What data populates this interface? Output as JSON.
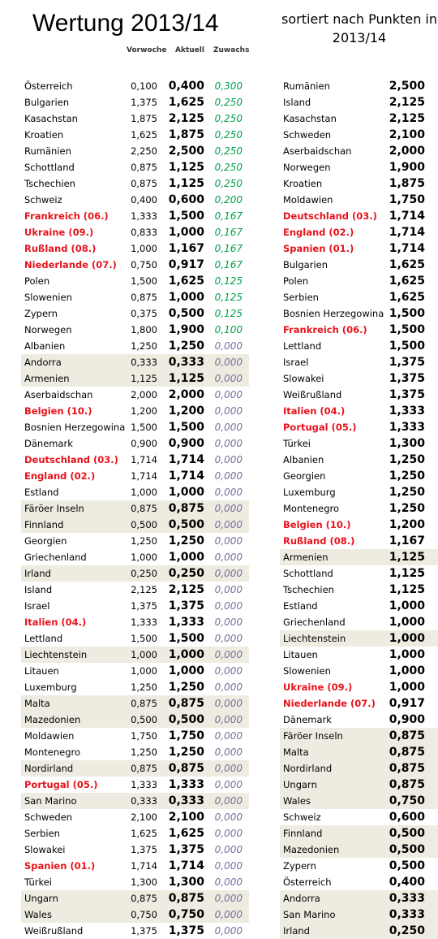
{
  "header": {
    "title": "Wertung 2013/14",
    "subtitle_line1": "sortiert nach Punkten in",
    "subtitle_line2": "2013/14",
    "col_vorwoche": "Vorwoche",
    "col_aktuell": "Aktuell",
    "col_zuwachs": "Zuwachs"
  },
  "left_table": {
    "rows": [
      {
        "name": "Österreich",
        "vorwoche": "0,100",
        "aktuell": "0,400",
        "zuwachs": "0,300"
      },
      {
        "name": "Bulgarien",
        "vorwoche": "1,375",
        "aktuell": "1,625",
        "zuwachs": "0,250"
      },
      {
        "name": "Kasachstan",
        "vorwoche": "1,875",
        "aktuell": "2,125",
        "zuwachs": "0,250"
      },
      {
        "name": "Kroatien",
        "vorwoche": "1,625",
        "aktuell": "1,875",
        "zuwachs": "0,250"
      },
      {
        "name": "Rumänien",
        "vorwoche": "2,250",
        "aktuell": "2,500",
        "zuwachs": "0,250"
      },
      {
        "name": "Schottland",
        "vorwoche": "0,875",
        "aktuell": "1,125",
        "zuwachs": "0,250"
      },
      {
        "name": "Tschechien",
        "vorwoche": "0,875",
        "aktuell": "1,125",
        "zuwachs": "0,250"
      },
      {
        "name": "Schweiz",
        "vorwoche": "0,400",
        "aktuell": "0,600",
        "zuwachs": "0,200"
      },
      {
        "name": "Frankreich (06.)",
        "vorwoche": "1,333",
        "aktuell": "1,500",
        "zuwachs": "0,167",
        "red": true
      },
      {
        "name": "Ukraine (09.)",
        "vorwoche": "0,833",
        "aktuell": "1,000",
        "zuwachs": "0,167",
        "red": true
      },
      {
        "name": "Rußland (08.)",
        "vorwoche": "1,000",
        "aktuell": "1,167",
        "zuwachs": "0,167",
        "red": true
      },
      {
        "name": "Niederlande (07.)",
        "vorwoche": "0,750",
        "aktuell": "0,917",
        "zuwachs": "0,167",
        "red": true
      },
      {
        "name": "Polen",
        "vorwoche": "1,500",
        "aktuell": "1,625",
        "zuwachs": "0,125"
      },
      {
        "name": "Slowenien",
        "vorwoche": "0,875",
        "aktuell": "1,000",
        "zuwachs": "0,125"
      },
      {
        "name": "Zypern",
        "vorwoche": "0,375",
        "aktuell": "0,500",
        "zuwachs": "0,125"
      },
      {
        "name": "Norwegen",
        "vorwoche": "1,800",
        "aktuell": "1,900",
        "zuwachs": "0,100"
      },
      {
        "name": "Albanien",
        "vorwoche": "1,250",
        "aktuell": "1,250",
        "zuwachs": "0,000"
      },
      {
        "name": "Andorra",
        "vorwoche": "0,333",
        "aktuell": "0,333",
        "zuwachs": "0,000",
        "shaded": true
      },
      {
        "name": "Armenien",
        "vorwoche": "1,125",
        "aktuell": "1,125",
        "zuwachs": "0,000",
        "shaded": true
      },
      {
        "name": "Aserbaidschan",
        "vorwoche": "2,000",
        "aktuell": "2,000",
        "zuwachs": "0,000"
      },
      {
        "name": "Belgien (10.)",
        "vorwoche": "1,200",
        "aktuell": "1,200",
        "zuwachs": "0,000",
        "red": true
      },
      {
        "name": "Bosnien Herzegowina",
        "vorwoche": "1,500",
        "aktuell": "1,500",
        "zuwachs": "0,000"
      },
      {
        "name": "Dänemark",
        "vorwoche": "0,900",
        "aktuell": "0,900",
        "zuwachs": "0,000"
      },
      {
        "name": "Deutschland (03.)",
        "vorwoche": "1,714",
        "aktuell": "1,714",
        "zuwachs": "0,000",
        "red": true
      },
      {
        "name": "England (02.)",
        "vorwoche": "1,714",
        "aktuell": "1,714",
        "zuwachs": "0,000",
        "red": true
      },
      {
        "name": "Estland",
        "vorwoche": "1,000",
        "aktuell": "1,000",
        "zuwachs": "0,000"
      },
      {
        "name": "Färöer Inseln",
        "vorwoche": "0,875",
        "aktuell": "0,875",
        "zuwachs": "0,000",
        "shaded": true
      },
      {
        "name": "Finnland",
        "vorwoche": "0,500",
        "aktuell": "0,500",
        "zuwachs": "0,000",
        "shaded": true
      },
      {
        "name": "Georgien",
        "vorwoche": "1,250",
        "aktuell": "1,250",
        "zuwachs": "0,000"
      },
      {
        "name": "Griechenland",
        "vorwoche": "1,000",
        "aktuell": "1,000",
        "zuwachs": "0,000"
      },
      {
        "name": "Irland",
        "vorwoche": "0,250",
        "aktuell": "0,250",
        "zuwachs": "0,000",
        "shaded": true
      },
      {
        "name": "Island",
        "vorwoche": "2,125",
        "aktuell": "2,125",
        "zuwachs": "0,000"
      },
      {
        "name": "Israel",
        "vorwoche": "1,375",
        "aktuell": "1,375",
        "zuwachs": "0,000"
      },
      {
        "name": "Italien (04.)",
        "vorwoche": "1,333",
        "aktuell": "1,333",
        "zuwachs": "0,000",
        "red": true
      },
      {
        "name": "Lettland",
        "vorwoche": "1,500",
        "aktuell": "1,500",
        "zuwachs": "0,000"
      },
      {
        "name": "Liechtenstein",
        "vorwoche": "1,000",
        "aktuell": "1,000",
        "zuwachs": "0,000",
        "shaded": true
      },
      {
        "name": "Litauen",
        "vorwoche": "1,000",
        "aktuell": "1,000",
        "zuwachs": "0,000"
      },
      {
        "name": "Luxemburg",
        "vorwoche": "1,250",
        "aktuell": "1,250",
        "zuwachs": "0,000"
      },
      {
        "name": "Malta",
        "vorwoche": "0,875",
        "aktuell": "0,875",
        "zuwachs": "0,000",
        "shaded": true
      },
      {
        "name": "Mazedonien",
        "vorwoche": "0,500",
        "aktuell": "0,500",
        "zuwachs": "0,000",
        "shaded": true
      },
      {
        "name": "Moldawien",
        "vorwoche": "1,750",
        "aktuell": "1,750",
        "zuwachs": "0,000"
      },
      {
        "name": "Montenegro",
        "vorwoche": "1,250",
        "aktuell": "1,250",
        "zuwachs": "0,000"
      },
      {
        "name": "Nordirland",
        "vorwoche": "0,875",
        "aktuell": "0,875",
        "zuwachs": "0,000",
        "shaded": true
      },
      {
        "name": "Portugal (05.)",
        "vorwoche": "1,333",
        "aktuell": "1,333",
        "zuwachs": "0,000",
        "red": true
      },
      {
        "name": "San Marino",
        "vorwoche": "0,333",
        "aktuell": "0,333",
        "zuwachs": "0,000",
        "shaded": true
      },
      {
        "name": "Schweden",
        "vorwoche": "2,100",
        "aktuell": "2,100",
        "zuwachs": "0,000"
      },
      {
        "name": "Serbien",
        "vorwoche": "1,625",
        "aktuell": "1,625",
        "zuwachs": "0,000"
      },
      {
        "name": "Slowakei",
        "vorwoche": "1,375",
        "aktuell": "1,375",
        "zuwachs": "0,000"
      },
      {
        "name": "Spanien (01.)",
        "vorwoche": "1,714",
        "aktuell": "1,714",
        "zuwachs": "0,000",
        "red": true
      },
      {
        "name": "Türkei",
        "vorwoche": "1,300",
        "aktuell": "1,300",
        "zuwachs": "0,000"
      },
      {
        "name": "Ungarn",
        "vorwoche": "0,875",
        "aktuell": "0,875",
        "zuwachs": "0,000",
        "shaded": true
      },
      {
        "name": "Wales",
        "vorwoche": "0,750",
        "aktuell": "0,750",
        "zuwachs": "0,000",
        "shaded": true
      },
      {
        "name": "Weißrußland",
        "vorwoche": "1,375",
        "aktuell": "1,375",
        "zuwachs": "0,000"
      }
    ]
  },
  "right_table": {
    "rows": [
      {
        "name": "Rumänien",
        "aktuell": "2,500"
      },
      {
        "name": "Island",
        "aktuell": "2,125"
      },
      {
        "name": "Kasachstan",
        "aktuell": "2,125"
      },
      {
        "name": "Schweden",
        "aktuell": "2,100"
      },
      {
        "name": "Aserbaidschan",
        "aktuell": "2,000"
      },
      {
        "name": "Norwegen",
        "aktuell": "1,900"
      },
      {
        "name": "Kroatien",
        "aktuell": "1,875"
      },
      {
        "name": "Moldawien",
        "aktuell": "1,750"
      },
      {
        "name": "Deutschland (03.)",
        "aktuell": "1,714",
        "red": true
      },
      {
        "name": "England (02.)",
        "aktuell": "1,714",
        "red": true
      },
      {
        "name": "Spanien (01.)",
        "aktuell": "1,714",
        "red": true
      },
      {
        "name": "Bulgarien",
        "aktuell": "1,625"
      },
      {
        "name": "Polen",
        "aktuell": "1,625"
      },
      {
        "name": "Serbien",
        "aktuell": "1,625"
      },
      {
        "name": "Bosnien Herzegowina",
        "aktuell": "1,500"
      },
      {
        "name": "Frankreich (06.)",
        "aktuell": "1,500",
        "red": true
      },
      {
        "name": "Lettland",
        "aktuell": "1,500"
      },
      {
        "name": "Israel",
        "aktuell": "1,375"
      },
      {
        "name": "Slowakei",
        "aktuell": "1,375"
      },
      {
        "name": "Weißrußland",
        "aktuell": "1,375"
      },
      {
        "name": "Italien (04.)",
        "aktuell": "1,333",
        "red": true
      },
      {
        "name": "Portugal (05.)",
        "aktuell": "1,333",
        "red": true
      },
      {
        "name": "Türkei",
        "aktuell": "1,300"
      },
      {
        "name": "Albanien",
        "aktuell": "1,250"
      },
      {
        "name": "Georgien",
        "aktuell": "1,250"
      },
      {
        "name": "Luxemburg",
        "aktuell": "1,250"
      },
      {
        "name": "Montenegro",
        "aktuell": "1,250"
      },
      {
        "name": "Belgien (10.)",
        "aktuell": "1,200",
        "red": true
      },
      {
        "name": "Rußland (08.)",
        "aktuell": "1,167",
        "red": true
      },
      {
        "name": "Armenien",
        "aktuell": "1,125",
        "shaded": true
      },
      {
        "name": "Schottland",
        "aktuell": "1,125"
      },
      {
        "name": "Tschechien",
        "aktuell": "1,125"
      },
      {
        "name": "Estland",
        "aktuell": "1,000"
      },
      {
        "name": "Griechenland",
        "aktuell": "1,000"
      },
      {
        "name": "Liechtenstein",
        "aktuell": "1,000",
        "shaded": true
      },
      {
        "name": "Litauen",
        "aktuell": "1,000"
      },
      {
        "name": "Slowenien",
        "aktuell": "1,000"
      },
      {
        "name": "Ukraine (09.)",
        "aktuell": "1,000",
        "red": true
      },
      {
        "name": "Niederlande (07.)",
        "aktuell": "0,917",
        "red": true
      },
      {
        "name": "Dänemark",
        "aktuell": "0,900"
      },
      {
        "name": "Färöer Inseln",
        "aktuell": "0,875",
        "shaded": true
      },
      {
        "name": "Malta",
        "aktuell": "0,875",
        "shaded": true
      },
      {
        "name": "Nordirland",
        "aktuell": "0,875",
        "shaded": true
      },
      {
        "name": "Ungarn",
        "aktuell": "0,875",
        "shaded": true
      },
      {
        "name": "Wales",
        "aktuell": "0,750",
        "shaded": true
      },
      {
        "name": "Schweiz",
        "aktuell": "0,600"
      },
      {
        "name": "Finnland",
        "aktuell": "0,500",
        "shaded": true
      },
      {
        "name": "Mazedonien",
        "aktuell": "0,500",
        "shaded": true
      },
      {
        "name": "Zypern",
        "aktuell": "0,500"
      },
      {
        "name": "Österreich",
        "aktuell": "0,400"
      },
      {
        "name": "Andorra",
        "aktuell": "0,333",
        "shaded": true
      },
      {
        "name": "San Marino",
        "aktuell": "0,333",
        "shaded": true
      },
      {
        "name": "Irland",
        "aktuell": "0,250",
        "shaded": true
      }
    ]
  }
}
